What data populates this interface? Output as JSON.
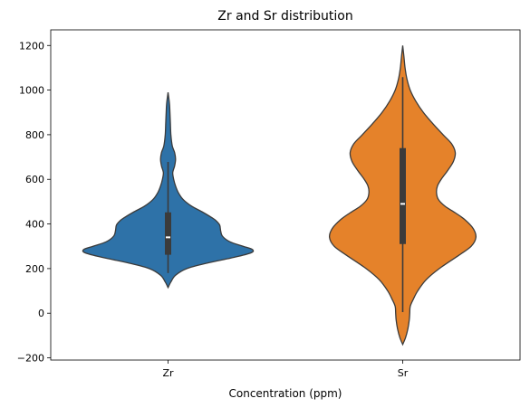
{
  "chart_data": {
    "type": "violin",
    "title": "Zr and Sr distribution",
    "xlabel": "Concentration (ppm)",
    "ylabel": "",
    "ylim": [
      -210,
      1270
    ],
    "yticks": [
      -200,
      0,
      200,
      400,
      600,
      800,
      1000,
      1200
    ],
    "categories": [
      "Zr",
      "Sr"
    ],
    "grid": false,
    "legend": "none",
    "violins": [
      {
        "category": "Zr",
        "color": "#2e72a8",
        "extent": [
          115,
          990
        ],
        "density_profile": [
          [
            115,
            0.0
          ],
          [
            140,
            0.03
          ],
          [
            170,
            0.08
          ],
          [
            200,
            0.2
          ],
          [
            225,
            0.42
          ],
          [
            250,
            0.7
          ],
          [
            270,
            0.88
          ],
          [
            285,
            0.9
          ],
          [
            300,
            0.8
          ],
          [
            320,
            0.66
          ],
          [
            345,
            0.58
          ],
          [
            370,
            0.56
          ],
          [
            395,
            0.55
          ],
          [
            415,
            0.51
          ],
          [
            430,
            0.46
          ],
          [
            455,
            0.36
          ],
          [
            480,
            0.25
          ],
          [
            510,
            0.16
          ],
          [
            540,
            0.11
          ],
          [
            570,
            0.08
          ],
          [
            600,
            0.06
          ],
          [
            630,
            0.05
          ],
          [
            660,
            0.07
          ],
          [
            690,
            0.08
          ],
          [
            720,
            0.07
          ],
          [
            750,
            0.045
          ],
          [
            800,
            0.03
          ],
          [
            850,
            0.025
          ],
          [
            900,
            0.02
          ],
          [
            940,
            0.015
          ],
          [
            990,
            0.0
          ]
        ],
        "box": {
          "whisker_low": 180,
          "q1": 262,
          "median": 340,
          "q3": 452,
          "whisker_high": 678
        }
      },
      {
        "category": "Sr",
        "color": "#e5822a",
        "extent": [
          -140,
          1200
        ],
        "density_profile": [
          [
            -140,
            0.0
          ],
          [
            -110,
            0.03
          ],
          [
            -70,
            0.055
          ],
          [
            -30,
            0.07
          ],
          [
            0,
            0.075
          ],
          [
            30,
            0.08
          ],
          [
            60,
            0.11
          ],
          [
            100,
            0.16
          ],
          [
            150,
            0.25
          ],
          [
            200,
            0.39
          ],
          [
            260,
            0.6
          ],
          [
            300,
            0.73
          ],
          [
            340,
            0.78
          ],
          [
            380,
            0.75
          ],
          [
            420,
            0.66
          ],
          [
            450,
            0.56
          ],
          [
            480,
            0.45
          ],
          [
            510,
            0.38
          ],
          [
            540,
            0.36
          ],
          [
            570,
            0.37
          ],
          [
            600,
            0.41
          ],
          [
            640,
            0.48
          ],
          [
            680,
            0.54
          ],
          [
            720,
            0.56
          ],
          [
            760,
            0.52
          ],
          [
            800,
            0.43
          ],
          [
            850,
            0.32
          ],
          [
            900,
            0.22
          ],
          [
            950,
            0.14
          ],
          [
            1000,
            0.08
          ],
          [
            1050,
            0.045
          ],
          [
            1100,
            0.025
          ],
          [
            1150,
            0.013
          ],
          [
            1200,
            0.0
          ]
        ],
        "box": {
          "whisker_low": 5,
          "q1": 310,
          "median": 490,
          "q3": 740,
          "whisker_high": 1058
        }
      }
    ]
  }
}
